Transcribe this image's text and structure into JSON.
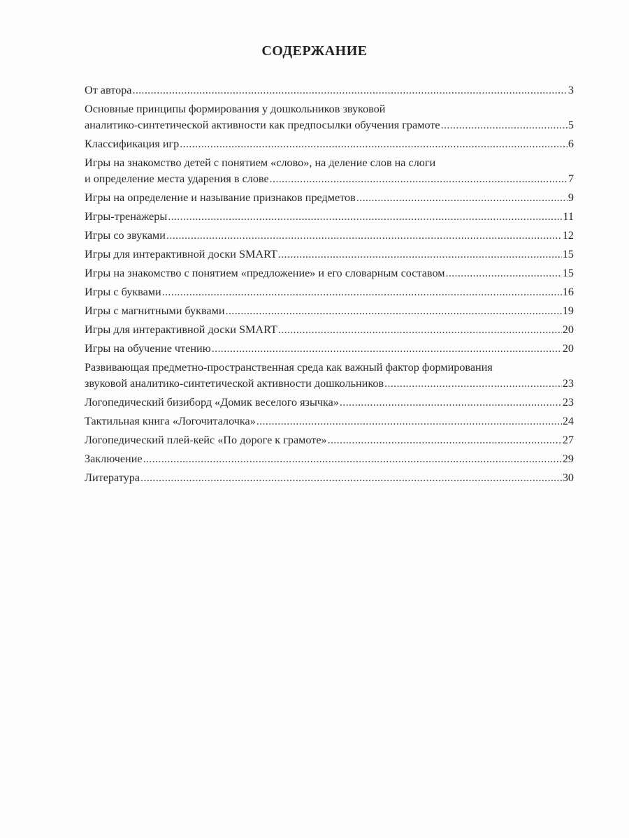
{
  "title": "СОДЕРЖАНИЕ",
  "entries": [
    {
      "lines": [
        "От автора"
      ],
      "page": "3"
    },
    {
      "lines": [
        "Основные принципы формирования у дошкольников звуковой",
        "аналитико-синтетической активности как предпосылки обучения грамоте"
      ],
      "page": "5"
    },
    {
      "lines": [
        "Классификация игр"
      ],
      "page": "6"
    },
    {
      "lines": [
        "Игры на знакомство детей с понятием «слово», на деление слов на слоги",
        "и определение места ударения в слове"
      ],
      "page": "7"
    },
    {
      "lines": [
        "Игры на определение и называние признаков предметов"
      ],
      "page": "9"
    },
    {
      "lines": [
        "Игры-тренажеры"
      ],
      "page": "11"
    },
    {
      "lines": [
        "Игры со звуками"
      ],
      "page": "12"
    },
    {
      "lines": [
        "Игры для интерактивной доски SMART"
      ],
      "page": "15"
    },
    {
      "lines": [
        "Игры на знакомство с понятием «предложение» и его словарным составом"
      ],
      "page": "15"
    },
    {
      "lines": [
        "Игры с буквами"
      ],
      "page": "16"
    },
    {
      "lines": [
        "Игры с магнитными буквами"
      ],
      "page": "19"
    },
    {
      "lines": [
        "Игры для интерактивной доски SMART"
      ],
      "page": "20"
    },
    {
      "lines": [
        "Игры на обучение чтению"
      ],
      "page": "20"
    },
    {
      "lines": [
        "Развивающая предметно-пространственная среда как важный фактор формирования",
        "звуковой аналитико-синтетической активности дошкольников"
      ],
      "page": "23"
    },
    {
      "lines": [
        "Логопедический бизиборд «Домик веселого язычка»"
      ],
      "page": "23"
    },
    {
      "lines": [
        "Тактильная книга «Логочиталочка»"
      ],
      "page": "24"
    },
    {
      "lines": [
        "Логопедический плей-кейс «По дороге к грамоте»"
      ],
      "page": "27"
    },
    {
      "lines": [
        "Заключение"
      ],
      "page": "29"
    },
    {
      "lines": [
        "Литература"
      ],
      "page": "30"
    }
  ]
}
